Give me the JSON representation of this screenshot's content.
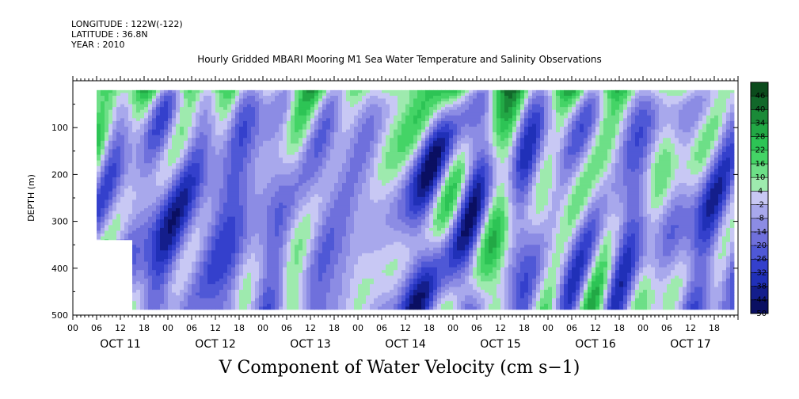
{
  "header": {
    "longitude": "LONGITUDE : 122W(-122)",
    "latitude": "LATITUDE : 36.8N",
    "year": "YEAR : 2010",
    "title": "Hourly Gridded MBARI Mooring M1 Sea Water Temperature and Salinity Observations"
  },
  "bottom_title": "V Component of Water Velocity (cm s−1)",
  "chart_data": {
    "type": "heatmap",
    "title": "Hourly Gridded MBARI Mooring M1 Sea Water Temperature and Salinity Observations",
    "xlabel": "",
    "ylabel": "DEPTH (m)",
    "ylim": [
      500,
      0
    ],
    "yticks": [
      100,
      200,
      300,
      400,
      500
    ],
    "ytick_labels": [
      "100",
      "200",
      "300",
      "400",
      "500"
    ],
    "xlim_hours": [
      0,
      168
    ],
    "x_hour_labels": [
      "00",
      "06",
      "12",
      "18",
      "00",
      "06",
      "12",
      "18",
      "00",
      "06",
      "12",
      "18",
      "00",
      "06",
      "12",
      "18",
      "00",
      "06",
      "12",
      "18",
      "00",
      "06",
      "12",
      "18",
      "00",
      "06",
      "12",
      "18"
    ],
    "x_day_labels": [
      "OCT 11",
      "OCT 12",
      "OCT 13",
      "OCT 14",
      "OCT 15",
      "OCT 16",
      "OCT 17"
    ],
    "data_extent": {
      "start_hour": 6,
      "end_hour": 167,
      "min_depth": 20,
      "max_depth": 488
    },
    "colorbar": {
      "labels": [
        "46",
        "40",
        "34",
        "28",
        "22",
        "16",
        "10",
        "4",
        "-2",
        "-8",
        "-14",
        "-20",
        "-26",
        "-32",
        "-38",
        "-44",
        "-50"
      ],
      "colors": [
        "#0b4b1c",
        "#11682a",
        "#1a8a38",
        "#22a845",
        "#2dc455",
        "#44d466",
        "#6ddf87",
        "#9eeaae",
        "#c8c8f4",
        "#a8a8ec",
        "#8c8ce4",
        "#6f70dc",
        "#4f58d6",
        "#3440cc",
        "#2030b8",
        "#141e8c",
        "#0a0f62"
      ]
    },
    "field_description": "V velocity (cm/s) as function of time (hourly, Oct 11-17 2010) and depth (0-500 m); positive (green) mostly near surface and in episodic columns (Oct 15, Oct 16), negative (blue) dominant at depth"
  }
}
